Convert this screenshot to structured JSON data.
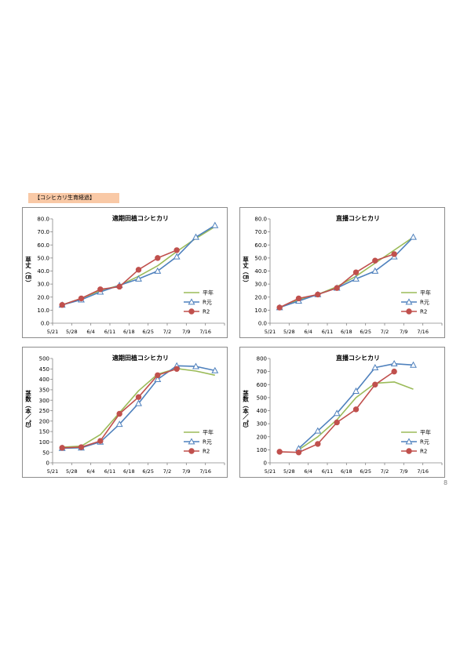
{
  "page": {
    "section_label": "【コシヒカリ生育経過】",
    "page_number": "8"
  },
  "colors": {
    "heinen": "#9bbb59",
    "r1": "#4f81bd",
    "r2": "#c0504d"
  },
  "chart_data": [
    {
      "id": "p1",
      "type": "line",
      "title": "適期田植コシヒカリ",
      "ylabel": "草丈（㎝）",
      "categories": [
        "5/21",
        "5/28",
        "6/4",
        "6/11",
        "6/18",
        "6/25",
        "7/2",
        "7/9",
        "7/16"
      ],
      "y_ticks": [
        "0.0",
        "10.0",
        "20.0",
        "30.0",
        "40.0",
        "50.0",
        "60.0",
        "70.0",
        "80.0"
      ],
      "ylim": [
        0,
        80
      ],
      "legend_position": "bottom-right",
      "series": [
        {
          "name": "平年",
          "marker": "none",
          "values": [
            14,
            19,
            25,
            29,
            36,
            44,
            55,
            65,
            74
          ]
        },
        {
          "name": "R元",
          "marker": "triangle",
          "values": [
            14,
            18,
            24,
            29,
            34,
            40,
            51,
            66,
            75
          ]
        },
        {
          "name": "R2",
          "marker": "circle",
          "values": [
            14,
            19,
            26,
            28,
            41,
            50,
            56,
            null,
            null
          ]
        }
      ]
    },
    {
      "id": "p2",
      "type": "line",
      "title": "直播コシヒカリ",
      "ylabel": "草丈（㎝）",
      "categories": [
        "5/21",
        "5/28",
        "6/4",
        "6/11",
        "6/18",
        "6/25",
        "7/2",
        "7/9",
        "7/16"
      ],
      "y_ticks": [
        "0.0",
        "10.0",
        "20.0",
        "30.0",
        "40.0",
        "50.0",
        "60.0",
        "70.0",
        "80.0"
      ],
      "ylim": [
        0,
        80
      ],
      "legend_position": "bottom-right",
      "series": [
        {
          "name": "平年",
          "marker": "none",
          "values": [
            12,
            18,
            22,
            28,
            36,
            46,
            56,
            66,
            null
          ]
        },
        {
          "name": "R元",
          "marker": "triangle",
          "values": [
            12,
            17,
            22,
            27,
            34,
            40,
            51,
            66,
            null
          ]
        },
        {
          "name": "R2",
          "marker": "circle",
          "values": [
            12,
            19,
            22,
            27,
            39,
            48,
            53,
            null,
            null
          ]
        }
      ]
    },
    {
      "id": "p3",
      "type": "line",
      "title": "適期田植コシヒカリ",
      "ylabel": "茎数（本／㎡）",
      "categories": [
        "5/21",
        "5/28",
        "6/4",
        "6/11",
        "6/18",
        "6/25",
        "7/2",
        "7/9",
        "7/16"
      ],
      "y_ticks": [
        "0",
        "50",
        "100",
        "150",
        "200",
        "250",
        "300",
        "350",
        "400",
        "450",
        "500"
      ],
      "ylim": [
        0,
        500
      ],
      "legend_position": "bottom-right",
      "series": [
        {
          "name": "平年",
          "marker": "none",
          "values": [
            75,
            80,
            135,
            240,
            345,
            425,
            452,
            440,
            420
          ]
        },
        {
          "name": "R元",
          "marker": "triangle",
          "values": [
            70,
            72,
            100,
            185,
            285,
            400,
            465,
            462,
            442
          ]
        },
        {
          "name": "R2",
          "marker": "circle",
          "values": [
            72,
            75,
            105,
            235,
            315,
            420,
            450,
            null,
            null
          ]
        }
      ]
    },
    {
      "id": "p4",
      "type": "line",
      "title": "直播コシヒカリ",
      "ylabel": "茎数（本／㎡）",
      "categories": [
        "5/21",
        "5/28",
        "6/4",
        "6/11",
        "6/18",
        "6/25",
        "7/2",
        "7/9",
        "7/16"
      ],
      "y_ticks": [
        "0",
        "100",
        "200",
        "300",
        "400",
        "500",
        "600",
        "700",
        "800"
      ],
      "ylim": [
        0,
        800
      ],
      "legend_position": "bottom-right",
      "series": [
        {
          "name": "平年",
          "marker": "none",
          "values": [
            null,
            100,
            200,
            330,
            500,
            610,
            620,
            565,
            null
          ]
        },
        {
          "name": "R元",
          "marker": "triangle",
          "values": [
            null,
            110,
            245,
            380,
            550,
            730,
            760,
            750,
            null
          ]
        },
        {
          "name": "R2",
          "marker": "circle",
          "values": [
            85,
            80,
            145,
            310,
            410,
            600,
            700,
            null,
            null
          ]
        }
      ]
    }
  ]
}
